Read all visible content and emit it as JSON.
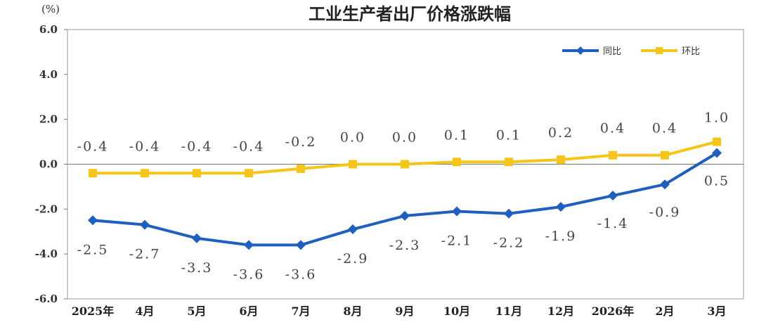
{
  "chart_data": {
    "type": "line",
    "title": "工业生产者出厂价格涨跌幅",
    "unit": "(%)",
    "ylim": [
      -6.0,
      6.0
    ],
    "yticks": [
      "6.0",
      "4.0",
      "2.0",
      "0.0",
      "-2.0",
      "-4.0",
      "-6.0"
    ],
    "ytick_values": [
      6,
      4,
      2,
      0,
      -2,
      -4,
      -6
    ],
    "categories": [
      "2025年",
      "4月",
      "5月",
      "6月",
      "7月",
      "8月",
      "9月",
      "10月",
      "11月",
      "12月",
      "2026年",
      "2月",
      "3月"
    ],
    "legend_position": "top-right",
    "grid": false,
    "series": [
      {
        "name": "同比",
        "color": "#1f5fbf",
        "marker": "diamond",
        "values": [
          -2.5,
          -2.7,
          -3.3,
          -3.6,
          -3.6,
          -2.9,
          -2.3,
          -2.1,
          -2.2,
          -1.9,
          -1.4,
          -0.9,
          0.5
        ],
        "labels": [
          "-2.5",
          "-2.7",
          "-3.3",
          "-3.6",
          "-3.6",
          "-2.9",
          "-2.3",
          "-2.1",
          "-2.2",
          "-1.9",
          "-1.4",
          "-0.9",
          "0.5"
        ]
      },
      {
        "name": "环比",
        "color": "#f5c518",
        "marker": "square",
        "values": [
          -0.4,
          -0.4,
          -0.4,
          -0.4,
          -0.2,
          0.0,
          0.0,
          0.1,
          0.1,
          0.2,
          0.4,
          0.4,
          1.0
        ],
        "labels": [
          "-0.4",
          "-0.4",
          "-0.4",
          "-0.4",
          "-0.2",
          "0.0",
          "0.0",
          "0.1",
          "0.1",
          "0.2",
          "0.4",
          "0.4",
          "1.0"
        ]
      }
    ]
  }
}
